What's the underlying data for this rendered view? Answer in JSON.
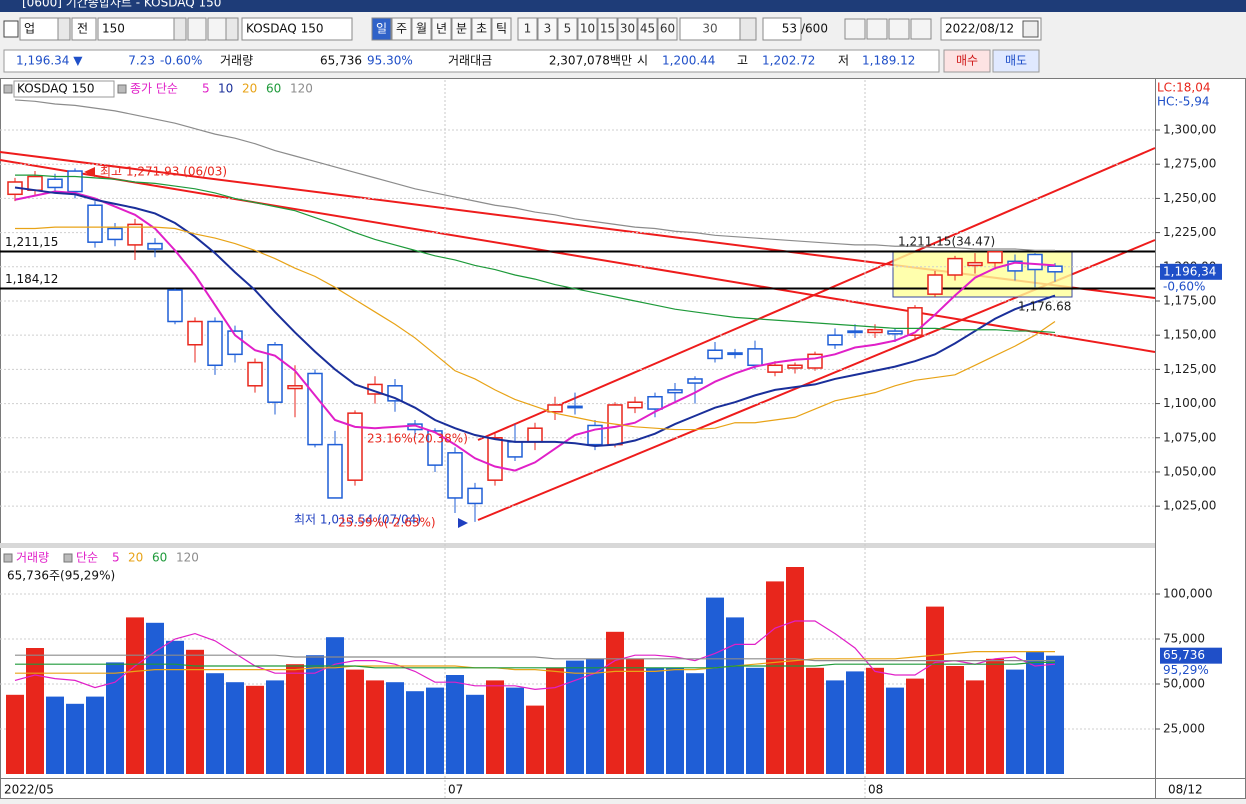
{
  "window": {
    "title": "[0600] 기간종합차트 - KOSDAQ 150"
  },
  "toolbar": {
    "market": "업",
    "type": "전",
    "code": "150",
    "name": "KOSDAQ 150",
    "periods": [
      "일",
      "주",
      "월",
      "년",
      "분",
      "초",
      "틱"
    ],
    "intervals": [
      "1",
      "3",
      "5",
      "10",
      "15",
      "30",
      "45",
      "60"
    ],
    "interval_select": "30",
    "count": "53",
    "count_max": "/600",
    "date": "2022/08/12"
  },
  "info_bar": {
    "price": "1,196.34 ▼",
    "change": "7.23",
    "change_rate": "-0.60%",
    "volume_label": "거래량",
    "volume": "65,736",
    "volume_ratio": "95.30%",
    "amount_label": "거래대금",
    "amount": "2,307,078백만",
    "open_label": "시",
    "open": "1,200.44",
    "high_label": "고",
    "high": "1,202.72",
    "low_label": "저",
    "low": "1,189.12",
    "buy": "매수",
    "sell": "매도"
  },
  "chart_data": [
    {
      "type": "candlestick",
      "legend": {
        "name": "KOSDAQ 150",
        "ma_label": "종가 단순"
      },
      "categories": [
        "2022/05",
        null,
        null,
        null,
        null,
        null,
        null,
        null,
        null,
        null,
        null,
        null,
        null,
        null,
        null,
        null,
        null,
        null,
        null,
        null,
        null,
        null,
        "07",
        null,
        null,
        null,
        null,
        null,
        null,
        null,
        null,
        null,
        null,
        null,
        null,
        null,
        null,
        null,
        null,
        null,
        null,
        null,
        null,
        "08",
        null,
        null,
        null,
        null,
        null,
        null,
        null,
        null,
        "08/12"
      ],
      "open": [
        1253,
        1256,
        1264,
        1270,
        1245,
        1228,
        1216,
        1217,
        1183,
        1143,
        1160,
        1153,
        1113,
        1143,
        1111,
        1122,
        1070,
        1044,
        1107,
        1113,
        1085,
        1080,
        1064,
        1038,
        1044,
        1072,
        1072,
        1094,
        1098,
        1084,
        1070,
        1097,
        1105,
        1110,
        1118,
        1139,
        1137,
        1140,
        1123,
        1126,
        1126,
        1150,
        1153,
        1152,
        1153,
        1150,
        1180,
        1194,
        1201,
        1203,
        1204,
        1209,
        1200.44
      ],
      "high": [
        1265,
        1270,
        1268,
        1271.93,
        1248,
        1232,
        1235,
        1221,
        1184,
        1163,
        1163,
        1157,
        1133,
        1145,
        1128,
        1125,
        1080,
        1095,
        1120,
        1118,
        1088,
        1082,
        1068,
        1042,
        1078,
        1085,
        1086,
        1105,
        1108,
        1088,
        1101,
        1105,
        1108,
        1115,
        1120,
        1145,
        1140,
        1146,
        1131,
        1130,
        1138,
        1155,
        1158,
        1158,
        1155,
        1172,
        1197,
        1208,
        1210,
        1211.15,
        1209,
        1210,
        1202.72
      ],
      "low": [
        1248,
        1252,
        1255,
        1250,
        1214,
        1215,
        1205,
        1207,
        1158,
        1130,
        1121,
        1130,
        1108,
        1092,
        1090,
        1068,
        1031,
        1040,
        1100,
        1094,
        1075,
        1050,
        1020,
        1013.54,
        1040,
        1058,
        1066,
        1088,
        1092,
        1066,
        1068,
        1093,
        1090,
        1100,
        1100,
        1130,
        1133,
        1125,
        1120,
        1122,
        1124,
        1140,
        1148,
        1148,
        1145,
        1146,
        1178,
        1190,
        1195,
        1198,
        1190,
        1185,
        1189.12
      ],
      "close": [
        1262,
        1266,
        1258,
        1255,
        1218,
        1220,
        1231,
        1213,
        1160,
        1160,
        1128,
        1136,
        1130,
        1101,
        1113,
        1070,
        1031,
        1093,
        1114,
        1102,
        1081,
        1055,
        1031,
        1027,
        1075,
        1061,
        1082,
        1099,
        1097,
        1070,
        1099,
        1101,
        1096,
        1108,
        1115,
        1133,
        1136,
        1128,
        1128,
        1128,
        1136,
        1143,
        1152,
        1154,
        1151,
        1170,
        1194,
        1206,
        1203,
        1211,
        1197,
        1198,
        1196.34
      ],
      "up_color": "#e8261c",
      "down_color": "#1f5ed6",
      "series": [
        {
          "name": "5",
          "color": "#e020c8",
          "values": [
            1249,
            1252,
            1255,
            1254,
            1250,
            1244,
            1238,
            1228,
            1212,
            1194,
            1172,
            1150,
            1139,
            1135,
            1124,
            1106,
            1088,
            1083,
            1082,
            1083,
            1084,
            1079,
            1070,
            1060,
            1054,
            1051,
            1057,
            1067,
            1077,
            1081,
            1083,
            1086,
            1094,
            1101,
            1108,
            1116,
            1122,
            1127,
            1130,
            1132,
            1133,
            1136,
            1141,
            1143,
            1146,
            1152,
            1165,
            1179,
            1192,
            1199,
            1203,
            1202,
            1201
          ]
        },
        {
          "name": "10",
          "color": "#1a2f9a",
          "values": [
            1258,
            1256,
            1254,
            1253,
            1249,
            1246,
            1243,
            1239,
            1232,
            1222,
            1210,
            1196,
            1183,
            1167,
            1152,
            1138,
            1125,
            1114,
            1109,
            1104,
            1097,
            1088,
            1082,
            1077,
            1074,
            1072,
            1072,
            1072,
            1071,
            1069,
            1070,
            1073,
            1078,
            1085,
            1091,
            1097,
            1101,
            1106,
            1110,
            1112,
            1114,
            1118,
            1121,
            1124,
            1127,
            1131,
            1136,
            1144,
            1153,
            1162,
            1169,
            1174,
            1179
          ]
        },
        {
          "name": "20",
          "color": "#e8a317",
          "values": [
            1228,
            1228,
            1229,
            1229,
            1229,
            1229,
            1229,
            1229,
            1228,
            1224,
            1221,
            1217,
            1212,
            1206,
            1199,
            1193,
            1185,
            1176,
            1167,
            1158,
            1148,
            1136,
            1124,
            1118,
            1110,
            1103,
            1098,
            1093,
            1090,
            1087,
            1085,
            1083,
            1082,
            1081,
            1081,
            1082,
            1086,
            1086,
            1088,
            1090,
            1096,
            1102,
            1105,
            1108,
            1113,
            1117,
            1119,
            1121,
            1128,
            1135,
            1142,
            1150,
            1160
          ]
        },
        {
          "name": "60",
          "color": "#1e9a3a",
          "values": [
            1267,
            1267,
            1266,
            1266,
            1265,
            1264,
            1262,
            1261,
            1259,
            1257,
            1254,
            1250,
            1247,
            1244,
            1241,
            1236,
            1231,
            1225,
            1220,
            1216,
            1212,
            1208,
            1205,
            1201,
            1198,
            1194,
            1191,
            1187,
            1184,
            1181,
            1178,
            1175,
            1172,
            1169,
            1167,
            1165,
            1163,
            1162,
            1161,
            1160,
            1159,
            1158,
            1157,
            1156,
            1155,
            1155,
            1155,
            1154,
            1154,
            1154,
            1153,
            1153,
            1152
          ]
        },
        {
          "name": "120",
          "color": "#8c8c8c",
          "values": [
            1322,
            1321,
            1319,
            1318,
            1316,
            1314,
            1311,
            1308,
            1305,
            1301,
            1297,
            1294,
            1290,
            1285,
            1281,
            1277,
            1273,
            1269,
            1265,
            1261,
            1257,
            1254,
            1251,
            1248,
            1245,
            1243,
            1240,
            1238,
            1235,
            1233,
            1231,
            1229,
            1228,
            1226,
            1225,
            1223,
            1222,
            1221,
            1220,
            1219,
            1218,
            1217,
            1216,
            1216,
            1215,
            1215,
            1214,
            1214,
            1213,
            1213,
            1213,
            1212,
            1212
          ]
        }
      ],
      "ylim": [
        998.8,
        1335.1
      ],
      "yticks": [
        {
          "value": 1025,
          "label": "1,025,00"
        },
        {
          "value": 1050,
          "label": "1,050,00"
        },
        {
          "value": 1075,
          "label": "1,075,00"
        },
        {
          "value": 1100,
          "label": "1,100,00"
        },
        {
          "value": 1125,
          "label": "1,125,00"
        },
        {
          "value": 1150,
          "label": "1,150,00"
        },
        {
          "value": 1175,
          "label": "1,175,00"
        },
        {
          "value": 1200,
          "label": "1,200,00"
        },
        {
          "value": 1225,
          "label": "1,225,00"
        },
        {
          "value": 1250,
          "label": "1,250,00"
        },
        {
          "value": 1275,
          "label": "1,275,00"
        },
        {
          "value": 1300,
          "label": "1,300,00"
        }
      ],
      "grid": true,
      "hlines": [
        {
          "value": 1211.15,
          "label": "1,211,15"
        },
        {
          "value": 1184.12,
          "label": "1,184,12"
        }
      ],
      "annotations": [
        "최고 1,271.93 (06/03)",
        "최저 1,013.54 (07/04)",
        "25.59%(-2.63%)",
        "23.16%(20.38%)",
        "1,211.15(34.47)",
        "1,176.68"
      ],
      "corner_labels": [
        "LC:18,04",
        "HC:-5,94"
      ],
      "last": {
        "value": 1196.34,
        "label": "1,196,34",
        "change": "-0,60%"
      }
    },
    {
      "type": "bar",
      "legend": {
        "name": "거래량",
        "ma_label": "단순"
      },
      "subtitle": "65,736주(95,29%)",
      "values": [
        44000,
        70000,
        43000,
        39000,
        43000,
        62000,
        87000,
        84000,
        74000,
        69000,
        56000,
        51000,
        49000,
        52000,
        61000,
        66000,
        76000,
        58000,
        52000,
        51000,
        46000,
        48000,
        55000,
        44000,
        52000,
        48000,
        38000,
        59000,
        63000,
        64000,
        79000,
        64000,
        59000,
        59000,
        56000,
        98000,
        87000,
        59000,
        107000,
        115000,
        59000,
        52000,
        57000,
        59000,
        48000,
        53000,
        93000,
        60000,
        52000,
        64000,
        58000,
        68000,
        65736
      ],
      "series": [
        {
          "name": "5",
          "color": "#e020c8",
          "values": [
            52000,
            55000,
            53000,
            52000,
            48000,
            51000,
            60000,
            68000,
            75000,
            78000,
            74000,
            67000,
            60000,
            56000,
            56000,
            56000,
            61000,
            63000,
            63000,
            61000,
            57000,
            51000,
            51000,
            49000,
            49000,
            49000,
            47000,
            48000,
            52000,
            56000,
            63000,
            66000,
            66000,
            65000,
            63000,
            67000,
            72000,
            72000,
            81000,
            85000,
            85000,
            78000,
            70000,
            57000,
            55000,
            55000,
            62000,
            63000,
            61000,
            64000,
            65000,
            60000,
            61000
          ]
        },
        {
          "name": "20",
          "color": "#e8a317",
          "values": [
            56000,
            56000,
            56000,
            56000,
            56000,
            56000,
            57000,
            58000,
            58000,
            58000,
            58000,
            58000,
            58000,
            58000,
            58000,
            59000,
            59000,
            60000,
            60000,
            60000,
            60000,
            60000,
            60000,
            59000,
            59000,
            58000,
            58000,
            57000,
            56000,
            56000,
            57000,
            57000,
            57000,
            58000,
            58000,
            59000,
            60000,
            61000,
            62000,
            63000,
            64000,
            64000,
            64000,
            64000,
            64000,
            65000,
            66000,
            67000,
            68000,
            68000,
            68000,
            68000,
            68000
          ]
        },
        {
          "name": "60",
          "color": "#1e9a3a",
          "values": [
            61000,
            61000,
            61000,
            61000,
            61000,
            61000,
            61000,
            61000,
            61000,
            60000,
            60000,
            60000,
            60000,
            60000,
            60000,
            60000,
            60000,
            60000,
            59000,
            59000,
            59000,
            59000,
            59000,
            59000,
            59000,
            59000,
            59000,
            59000,
            59000,
            59000,
            59000,
            59000,
            59000,
            59000,
            59000,
            59000,
            60000,
            60000,
            60000,
            60000,
            60000,
            61000,
            61000,
            61000,
            61000,
            61000,
            61000,
            61000,
            61000,
            61000,
            61000,
            62000,
            62000
          ]
        },
        {
          "name": "120",
          "color": "#8c8c8c",
          "values": [
            66000,
            66000,
            66000,
            66000,
            66000,
            66000,
            66000,
            66000,
            66000,
            66000,
            66000,
            66000,
            66000,
            66000,
            65000,
            65000,
            65000,
            65000,
            65000,
            65000,
            65000,
            65000,
            65000,
            65000,
            65000,
            65000,
            65000,
            64000,
            64000,
            64000,
            64000,
            64000,
            64000,
            64000,
            64000,
            64000,
            64000,
            64000,
            64000,
            64000,
            63000,
            63000,
            63000,
            63000,
            63000,
            63000,
            63000,
            63000,
            63000,
            63000,
            63000,
            63000,
            63000
          ]
        }
      ],
      "ylim": [
        0,
        125000
      ],
      "yticks": [
        {
          "value": 25000,
          "label": "25,000"
        },
        {
          "value": 50000,
          "label": "50,000"
        },
        {
          "value": 75000,
          "label": "75,000"
        },
        {
          "value": 100000,
          "label": "100,000"
        }
      ],
      "grid": true,
      "last": {
        "value": 65736,
        "label": "65,736",
        "change": "95,29%"
      }
    }
  ]
}
